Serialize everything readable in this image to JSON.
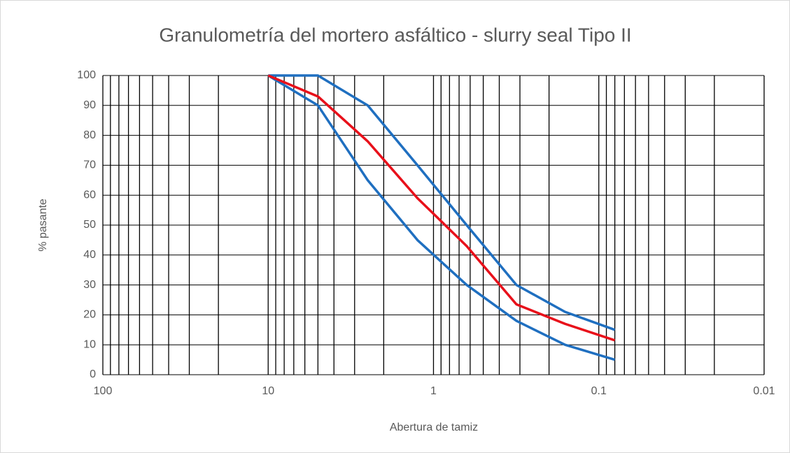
{
  "chart_data": {
    "type": "line",
    "title": "Granulometría del mortero asfáltico - slurry seal Tipo II",
    "xlabel": "Abertura de tamiz",
    "ylabel": "% pasante",
    "x": [
      10,
      5,
      2.5,
      1.25,
      0.63,
      0.315,
      0.16,
      0.08
    ],
    "series": [
      {
        "color": "#1f6fc0",
        "values": [
          100,
          100,
          90,
          70,
          50,
          30,
          21,
          15
        ]
      },
      {
        "color": "#1f6fc0",
        "values": [
          100,
          90,
          65,
          45,
          30,
          18,
          10,
          5
        ]
      },
      {
        "color": "#e8101a",
        "values": [
          100,
          93,
          78,
          59,
          43,
          23.5,
          17,
          11.5
        ]
      }
    ],
    "xlim": [
      100,
      0.01
    ],
    "xticks": [
      100,
      10,
      1,
      0.1,
      0.01
    ],
    "xscale": "log",
    "ylim": [
      0,
      100
    ],
    "yticks": [
      0,
      10,
      20,
      30,
      40,
      50,
      60,
      70,
      80,
      90,
      100
    ],
    "grid": true,
    "minor_grid": true
  }
}
